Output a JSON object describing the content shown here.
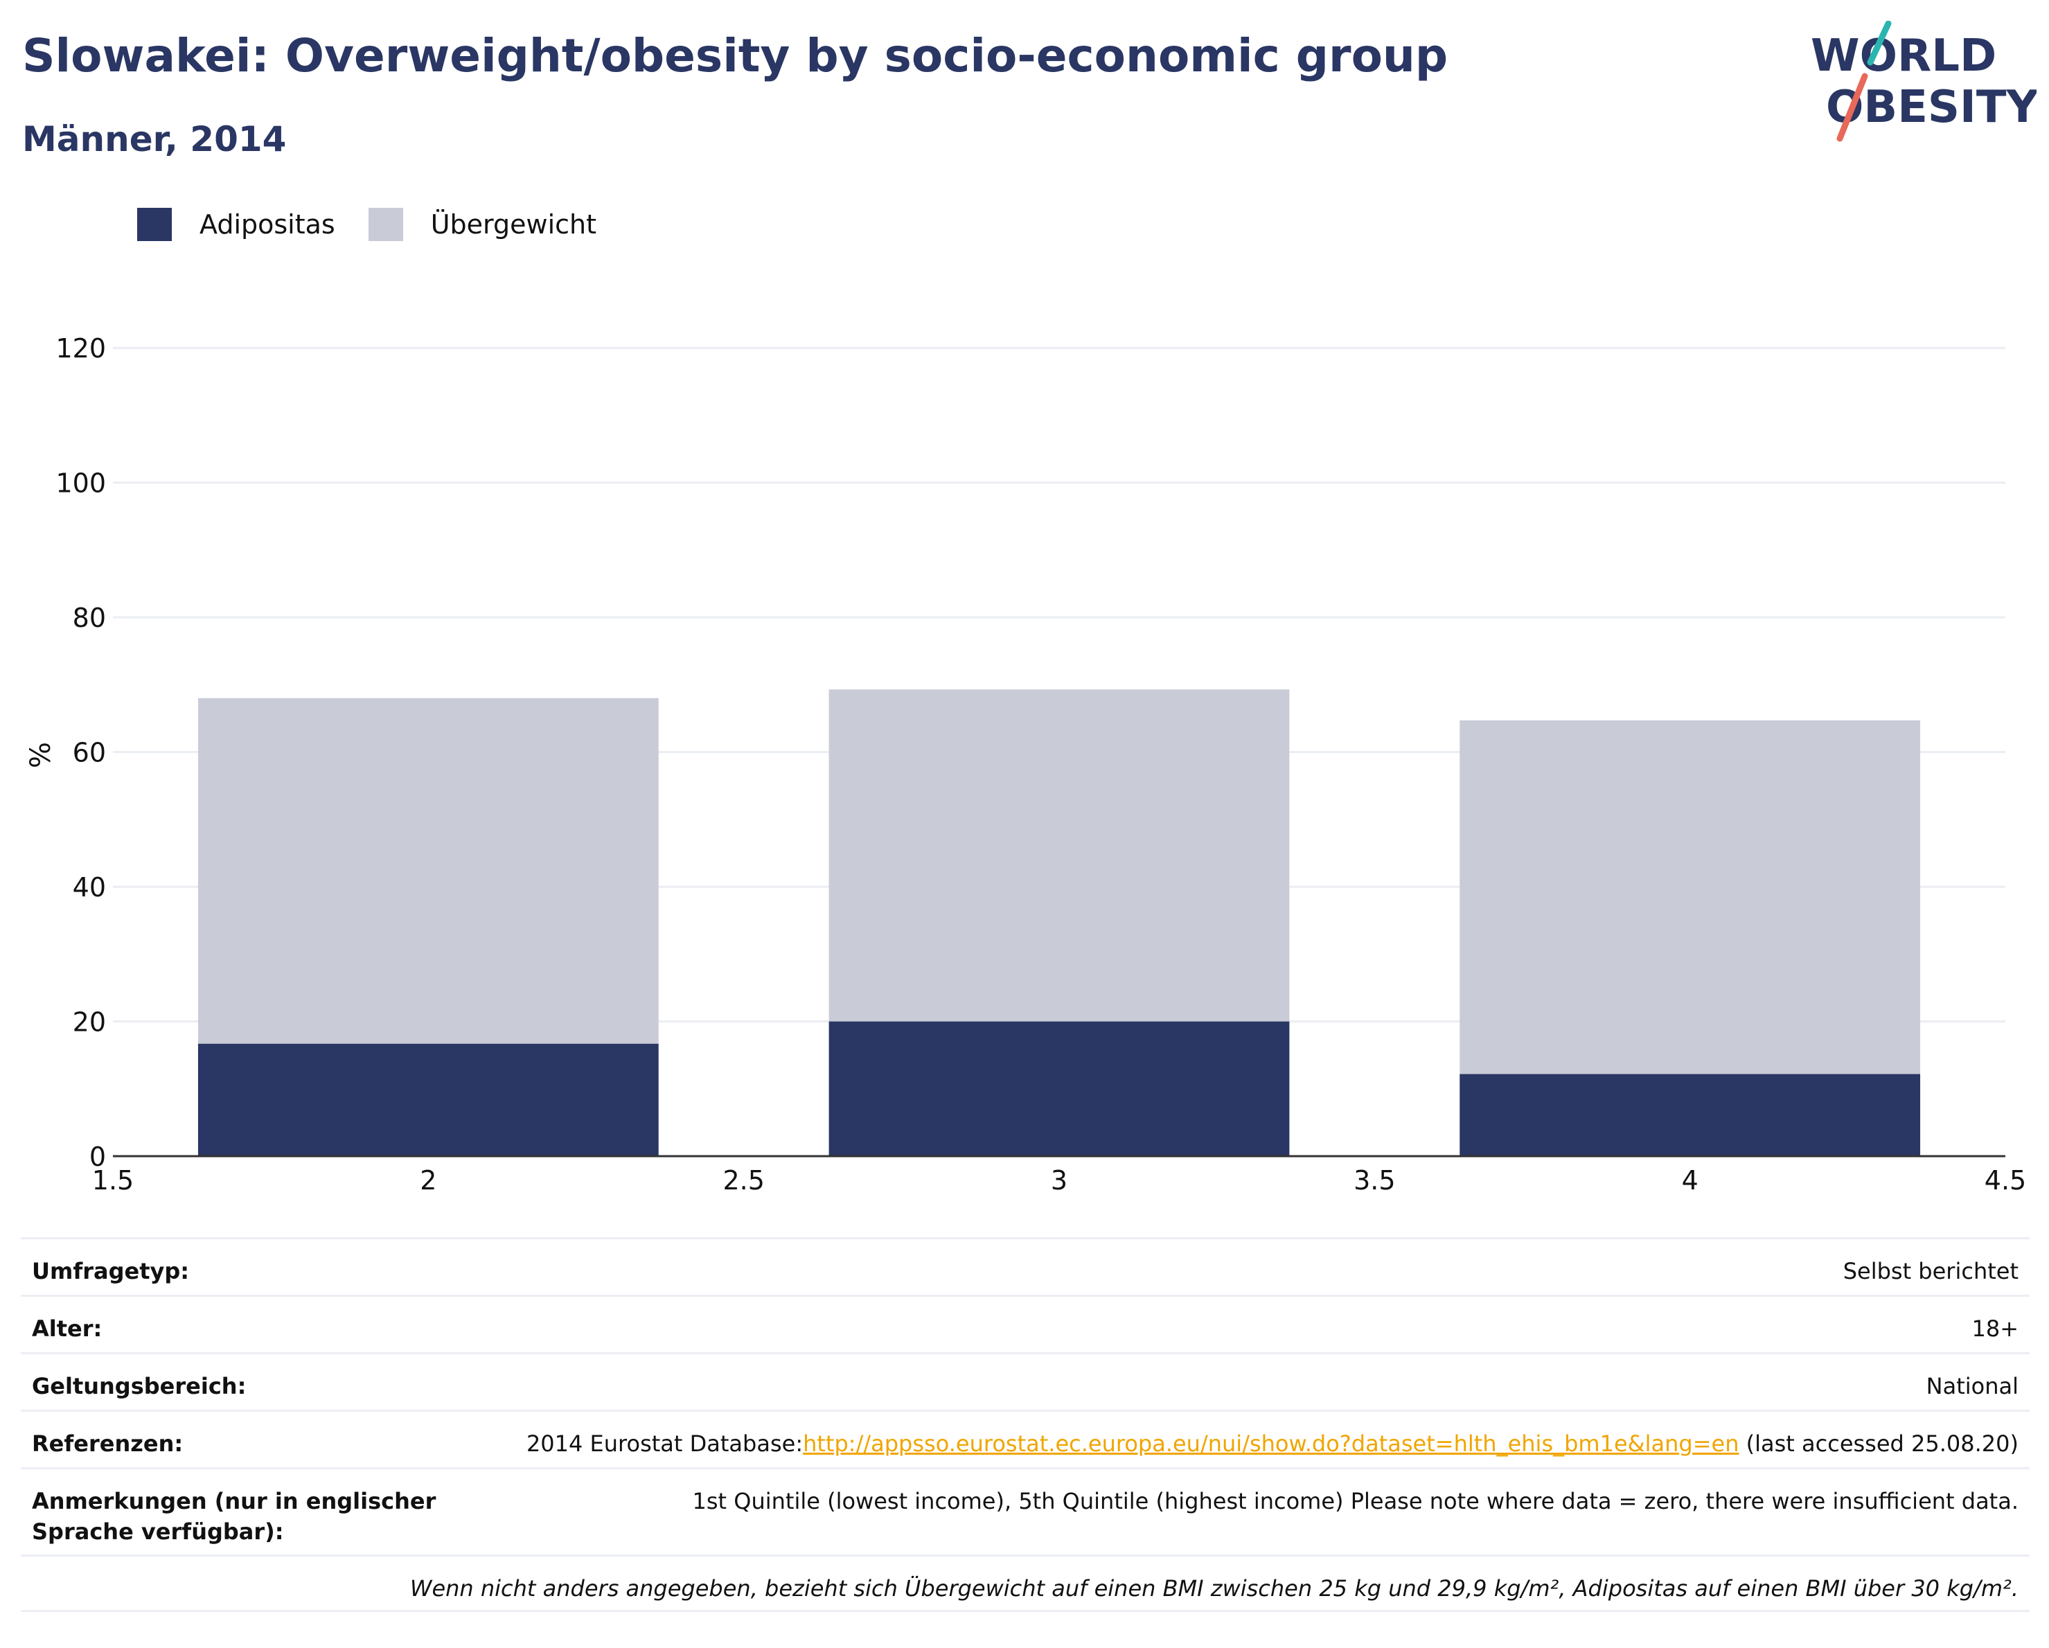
{
  "header": {
    "title": "Slowakei: Overweight/obesity by socio-economic group",
    "subtitle": "Männer, 2014"
  },
  "logo": {
    "line1": "WORLD",
    "line2": "OBESITY",
    "colors": {
      "teal": "#2bb5b0",
      "coral": "#e8685a",
      "navy": "#2a3663"
    }
  },
  "legend": [
    {
      "label": "Adipositas",
      "color": "#2a3663"
    },
    {
      "label": "Übergewicht",
      "color": "#c9ccd7"
    }
  ],
  "chart_data": {
    "type": "bar",
    "stacked": true,
    "x": [
      2,
      3,
      4
    ],
    "series": [
      {
        "name": "Adipositas",
        "values": [
          16.7,
          20.0,
          12.2
        ],
        "color": "#2a3663"
      },
      {
        "name": "Übergewicht",
        "values": [
          51.3,
          49.3,
          52.5
        ],
        "color": "#c9ccd7"
      }
    ],
    "bar_width": 0.73,
    "xlim": [
      1.5,
      4.5
    ],
    "xticks": [
      "1.5",
      "2",
      "2.5",
      "3",
      "3.5",
      "4",
      "4.5"
    ],
    "ylim": [
      0,
      130
    ],
    "yticks": [
      "0",
      "20",
      "40",
      "60",
      "80",
      "100",
      "120"
    ],
    "ylabel": "%",
    "xlabel": "",
    "grid": true,
    "legend_position": "top-left"
  },
  "info": {
    "survey_label": "Umfragetyp:",
    "survey_value": "Selbst berichtet",
    "age_label": "Alter:",
    "age_value": "18+",
    "scope_label": "Geltungsbereich:",
    "scope_value": "National",
    "ref_label": "Referenzen:",
    "ref_prefix": "2014 Eurostat Database:",
    "ref_link": "http://appsso.eurostat.ec.europa.eu/nui/show.do?dataset=hlth_ehis_bm1e&lang=en",
    "ref_suffix": " (last accessed 25.08.20)",
    "notes_label": "Anmerkungen (nur in englischer Sprache verfügbar):",
    "notes_value": "1st Quintile (lowest income), 5th Quintile (highest income) Please note where data = zero, there were insufficient data.",
    "footnote": "Wenn nicht anders angegeben, bezieht sich Übergewicht auf einen BMI zwischen 25 kg und 29,9 kg/m², Adipositas auf einen BMI über 30 kg/m²."
  }
}
